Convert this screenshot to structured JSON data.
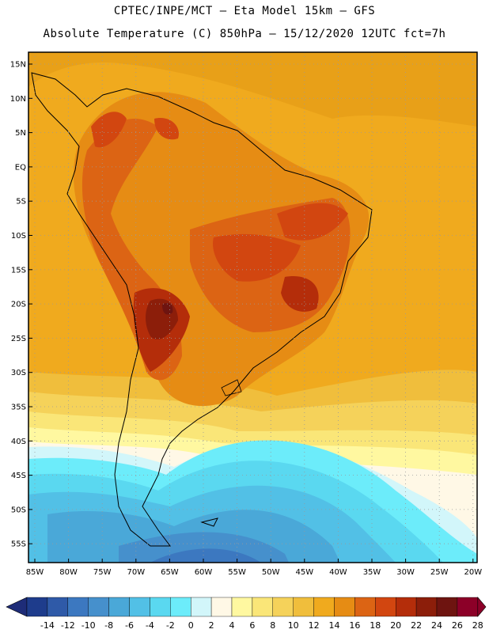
{
  "header": {
    "title_line1": "CPTEC/INPE/MCT –  Eta Model 15km – GFS",
    "title_line2": "Absolute Temperature (C) 850hPa – 15/12/2020 12UTC fct=7h"
  },
  "map": {
    "lat_labels": [
      "15N",
      "10N",
      "5N",
      "EQ",
      "5S",
      "10S",
      "15S",
      "20S",
      "25S",
      "30S",
      "35S",
      "40S",
      "45S",
      "50S",
      "55S"
    ],
    "lon_labels": [
      "85W",
      "80W",
      "75W",
      "70W",
      "65W",
      "60W",
      "55W",
      "50W",
      "45W",
      "40W",
      "35W",
      "30W",
      "25W",
      "20W"
    ]
  },
  "colorbar": {
    "labels": [
      "-14",
      "-12",
      "-10",
      "-8",
      "-6",
      "-4",
      "-2",
      "0",
      "2",
      "4",
      "6",
      "8",
      "10",
      "12",
      "14",
      "16",
      "18",
      "20",
      "22",
      "24",
      "26",
      "28"
    ],
    "colors": [
      "#1e3c8c",
      "#2f5aa8",
      "#3c78c0",
      "#4690cc",
      "#4aa8d8",
      "#52c0e6",
      "#5ad8f0",
      "#6cecfa",
      "#d2f6fa",
      "#fff8e6",
      "#fff8a0",
      "#fae678",
      "#f5d25a",
      "#f0be3c",
      "#f0aa1e",
      "#e68c14",
      "#dc6414",
      "#d24610",
      "#b42d0a",
      "#8c1e0a",
      "#6e1410",
      "#8c0028"
    ],
    "arrow_colors": [
      "#1e2c78",
      "#8c0028"
    ]
  }
}
